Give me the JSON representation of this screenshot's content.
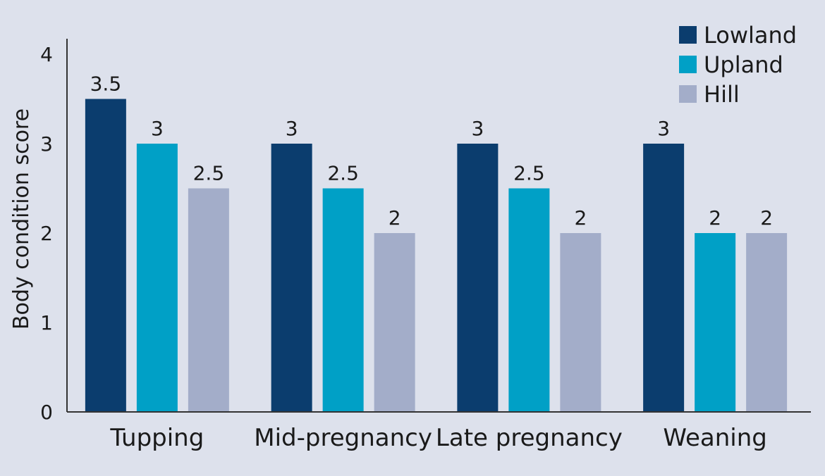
{
  "chart_data": {
    "type": "bar",
    "title": "",
    "xlabel": "",
    "ylabel": "Body condition score",
    "ylim": [
      0,
      4
    ],
    "yticks": [
      0,
      1,
      2,
      3,
      4
    ],
    "grid": false,
    "legend_position": "top-right",
    "categories": [
      "Tupping",
      "Mid-pregnancy",
      "Late pregnancy",
      "Weaning"
    ],
    "series": [
      {
        "name": "Lowland",
        "color": "#0b3d6e",
        "values": [
          3.5,
          3,
          3,
          3
        ],
        "labels": [
          "3.5",
          "3",
          "3",
          "3"
        ]
      },
      {
        "name": "Upland",
        "color": "#00a0c6",
        "values": [
          3,
          2.5,
          2.5,
          2
        ],
        "labels": [
          "3",
          "2.5",
          "2.5",
          "2"
        ]
      },
      {
        "name": "Hill",
        "color": "#a3adc9",
        "values": [
          2.5,
          2,
          2,
          2
        ],
        "labels": [
          "2.5",
          "2",
          "2",
          "2"
        ]
      }
    ]
  }
}
